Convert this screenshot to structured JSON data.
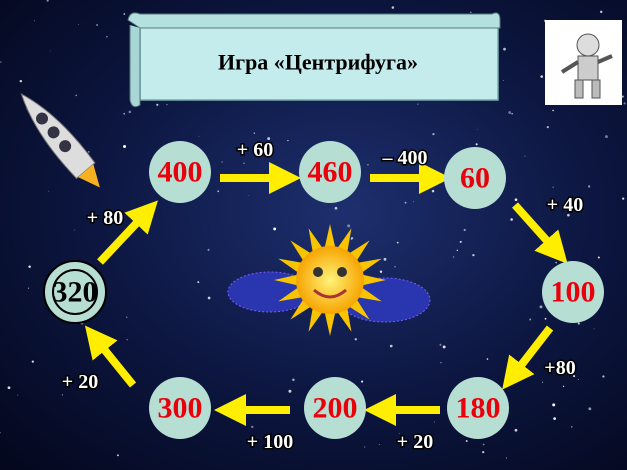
{
  "title": "Игра «Центрифуга»",
  "nodes": [
    {
      "label": "400"
    },
    {
      "label": "460"
    },
    {
      "label": "60"
    },
    {
      "label": "100"
    },
    {
      "label": "180"
    },
    {
      "label": "200"
    },
    {
      "label": "300"
    },
    {
      "label": "320"
    }
  ],
  "operations": [
    {
      "label": "+ 60"
    },
    {
      "label": "– 400"
    },
    {
      "label": "+ 40"
    },
    {
      "label": "+80"
    },
    {
      "label": "+ 20"
    },
    {
      "label": "+ 100"
    },
    {
      "label": "+ 20"
    },
    {
      "label": "+ 80"
    }
  ]
}
